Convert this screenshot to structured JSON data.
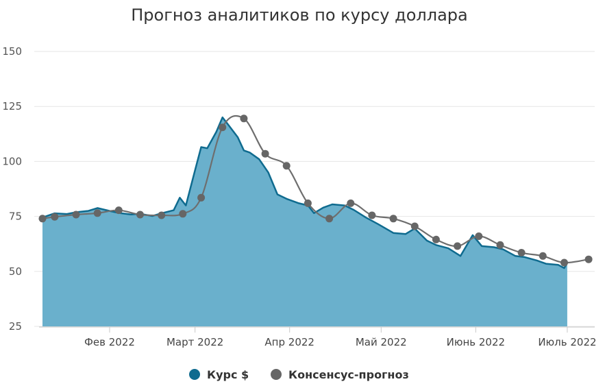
{
  "chart_data": {
    "type": "area",
    "title": "Прогноз аналитиков по курсу доллара",
    "xlabel": "",
    "ylabel": "",
    "ylim": [
      25,
      150
    ],
    "yticks": [
      25,
      50,
      75,
      100,
      125,
      150
    ],
    "xticks": [
      "2022-02-01",
      "2022-03-01",
      "2022-04-01",
      "2022-05-01",
      "2022-06-01",
      "2022-07-01"
    ],
    "xtick_labels": [
      "Фев 2022",
      "Март 2022",
      "Апр 2022",
      "Май 2022",
      "Июнь 2022",
      "Июль 2022"
    ],
    "xlim": [
      "2022-01-10",
      "2022-07-10"
    ],
    "grid": true,
    "legend_position": "bottom-center",
    "colors": {
      "area_fill": "#6ab0cc",
      "area_line": "#0f6b8f",
      "forecast_line": "#6e6e6e",
      "forecast_marker": "#666666",
      "grid": "#e6e6e6"
    },
    "series": [
      {
        "name": "Курс $",
        "kind": "area",
        "points": [
          [
            "2022-01-10",
            74.5
          ],
          [
            "2022-01-14",
            76.4
          ],
          [
            "2022-01-18",
            76.1
          ],
          [
            "2022-01-21",
            76.9
          ],
          [
            "2022-01-25",
            77.5
          ],
          [
            "2022-01-28",
            78.8
          ],
          [
            "2022-02-01",
            77.5
          ],
          [
            "2022-02-04",
            76.6
          ],
          [
            "2022-02-08",
            75.9
          ],
          [
            "2022-02-11",
            76.2
          ],
          [
            "2022-02-15",
            75.2
          ],
          [
            "2022-02-18",
            76.4
          ],
          [
            "2022-02-22",
            77.8
          ],
          [
            "2022-02-24",
            83.5
          ],
          [
            "2022-02-26",
            80.0
          ],
          [
            "2022-03-01",
            96.0
          ],
          [
            "2022-03-03",
            106.5
          ],
          [
            "2022-03-05",
            106.0
          ],
          [
            "2022-03-08",
            113.5
          ],
          [
            "2022-03-10",
            120.0
          ],
          [
            "2022-03-12",
            116.5
          ],
          [
            "2022-03-15",
            111.0
          ],
          [
            "2022-03-17",
            105.0
          ],
          [
            "2022-03-19",
            104.0
          ],
          [
            "2022-03-22",
            101.0
          ],
          [
            "2022-03-25",
            95.0
          ],
          [
            "2022-03-28",
            85.0
          ],
          [
            "2022-03-31",
            83.0
          ],
          [
            "2022-04-04",
            81.0
          ],
          [
            "2022-04-07",
            80.0
          ],
          [
            "2022-04-09",
            76.5
          ],
          [
            "2022-04-12",
            79.0
          ],
          [
            "2022-04-15",
            80.5
          ],
          [
            "2022-04-19",
            80.0
          ],
          [
            "2022-04-22",
            78.0
          ],
          [
            "2022-04-26",
            74.5
          ],
          [
            "2022-04-30",
            71.5
          ],
          [
            "2022-05-05",
            67.5
          ],
          [
            "2022-05-09",
            67.0
          ],
          [
            "2022-05-12",
            69.5
          ],
          [
            "2022-05-16",
            64.0
          ],
          [
            "2022-05-19",
            62.0
          ],
          [
            "2022-05-23",
            60.5
          ],
          [
            "2022-05-27",
            57.0
          ],
          [
            "2022-05-31",
            66.5
          ],
          [
            "2022-06-03",
            61.5
          ],
          [
            "2022-06-07",
            61.0
          ],
          [
            "2022-06-10",
            60.0
          ],
          [
            "2022-06-14",
            57.0
          ],
          [
            "2022-06-17",
            56.5
          ],
          [
            "2022-06-21",
            55.0
          ],
          [
            "2022-06-24",
            53.5
          ],
          [
            "2022-06-28",
            53.0
          ],
          [
            "2022-06-30",
            51.5
          ],
          [
            "2022-07-01",
            54.0
          ]
        ]
      },
      {
        "name": "Консенсус-прогноз",
        "kind": "line-markers",
        "points": [
          [
            "2022-01-10",
            74.0
          ],
          [
            "2022-01-14",
            74.8
          ],
          [
            "2022-01-21",
            75.8
          ],
          [
            "2022-01-28",
            76.5
          ],
          [
            "2022-02-04",
            77.8
          ],
          [
            "2022-02-11",
            75.8
          ],
          [
            "2022-02-18",
            75.5
          ],
          [
            "2022-02-25",
            76.2
          ],
          [
            "2022-03-03",
            83.5
          ],
          [
            "2022-03-10",
            115.5
          ],
          [
            "2022-03-17",
            119.5
          ],
          [
            "2022-03-24",
            103.5
          ],
          [
            "2022-03-31",
            98.0
          ],
          [
            "2022-04-07",
            81.0
          ],
          [
            "2022-04-14",
            74.0
          ],
          [
            "2022-04-21",
            81.0
          ],
          [
            "2022-04-28",
            75.5
          ],
          [
            "2022-05-05",
            74.0
          ],
          [
            "2022-05-12",
            70.5
          ],
          [
            "2022-05-19",
            64.5
          ],
          [
            "2022-05-26",
            61.5
          ],
          [
            "2022-06-02",
            66.0
          ],
          [
            "2022-06-09",
            62.0
          ],
          [
            "2022-06-16",
            58.5
          ],
          [
            "2022-06-23",
            57.0
          ],
          [
            "2022-06-30",
            54.0
          ],
          [
            "2022-07-08",
            55.5
          ]
        ]
      }
    ]
  }
}
